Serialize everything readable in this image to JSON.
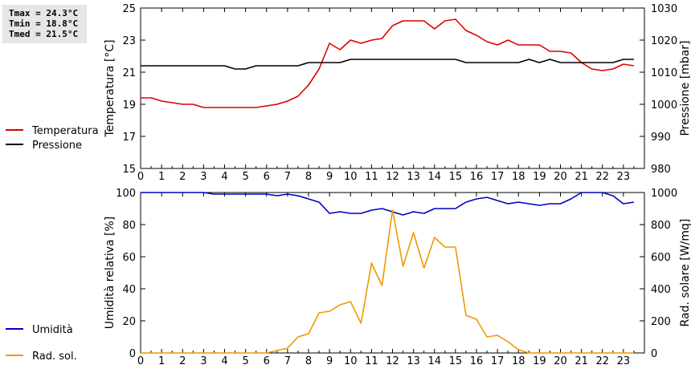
{
  "stats": {
    "tmax": "Tmax = 24.3°C",
    "tmin": "Tmin = 18.8°C",
    "tmed": "Tmed = 21.5°C"
  },
  "chart_data": [
    {
      "type": "line",
      "ylabel_left": "Temperatura [°C]",
      "ylabel_right": "Pressione [mbar]",
      "ylim_left": [
        15,
        25
      ],
      "ylim_right": [
        980,
        1030
      ],
      "yticks_left": [
        15,
        17,
        19,
        21,
        23,
        25
      ],
      "yticks_right": [
        980,
        990,
        1000,
        1010,
        1020,
        1030
      ],
      "xticks": [
        "0",
        "1",
        "2",
        "3",
        "4",
        "5",
        "6",
        "7",
        "8",
        "9",
        "10",
        "11",
        "12",
        "13",
        "14",
        "15",
        "16",
        "17",
        "18",
        "19",
        "20",
        "21",
        "22",
        "23"
      ],
      "x": [
        0,
        0.5,
        1,
        1.5,
        2,
        2.5,
        3,
        3.5,
        4,
        4.5,
        5,
        5.5,
        6,
        6.5,
        7,
        7.5,
        8,
        8.5,
        9,
        9.5,
        10,
        10.5,
        11,
        11.5,
        12,
        12.5,
        13,
        13.5,
        14,
        14.5,
        15,
        15.5,
        16,
        16.5,
        17,
        17.5,
        18,
        18.5,
        19,
        19.5,
        20,
        20.5,
        21,
        21.5,
        22,
        22.5,
        23,
        23.5
      ],
      "series": [
        {
          "name": "Temperatura",
          "color": "#dd0000",
          "axis": "left",
          "values": [
            19.4,
            19.4,
            19.2,
            19.1,
            19.0,
            19.0,
            18.8,
            18.8,
            18.8,
            18.8,
            18.8,
            18.8,
            18.9,
            19.0,
            19.2,
            19.5,
            20.2,
            21.2,
            22.8,
            22.4,
            23.0,
            22.8,
            23.0,
            23.1,
            23.9,
            24.2,
            24.2,
            24.2,
            23.7,
            24.2,
            24.3,
            23.6,
            23.3,
            22.9,
            22.7,
            23.0,
            22.7,
            22.7,
            22.7,
            22.3,
            22.3,
            22.2,
            21.6,
            21.2,
            21.1,
            21.2,
            21.5,
            21.4
          ]
        },
        {
          "name": "Pressione",
          "color": "#000000",
          "axis": "right",
          "values": [
            1012,
            1012,
            1012,
            1012,
            1012,
            1012,
            1012,
            1012,
            1012,
            1011,
            1011,
            1012,
            1012,
            1012,
            1012,
            1012,
            1013,
            1013,
            1013,
            1013,
            1014,
            1014,
            1014,
            1014,
            1014,
            1014,
            1014,
            1014,
            1014,
            1014,
            1014,
            1013,
            1013,
            1013,
            1013,
            1013,
            1013,
            1014,
            1013,
            1014,
            1013,
            1013,
            1013,
            1013,
            1013,
            1013,
            1014,
            1014
          ]
        }
      ]
    },
    {
      "type": "line",
      "ylabel_left": "Umidità relativa [%]",
      "ylabel_right": "Rad. solare [W/mq]",
      "ylim_left": [
        0,
        100
      ],
      "ylim_right": [
        0,
        1000
      ],
      "yticks_left": [
        0,
        20,
        40,
        60,
        80,
        100
      ],
      "yticks_right": [
        0,
        200,
        400,
        600,
        800,
        1000
      ],
      "xticks": [
        "0",
        "1",
        "2",
        "3",
        "4",
        "5",
        "6",
        "7",
        "8",
        "9",
        "10",
        "11",
        "12",
        "13",
        "14",
        "15",
        "16",
        "17",
        "18",
        "19",
        "20",
        "21",
        "22",
        "23"
      ],
      "x": [
        0,
        0.5,
        1,
        1.5,
        2,
        2.5,
        3,
        3.5,
        4,
        4.5,
        5,
        5.5,
        6,
        6.5,
        7,
        7.5,
        8,
        8.5,
        9,
        9.5,
        10,
        10.5,
        11,
        11.5,
        12,
        12.5,
        13,
        13.5,
        14,
        14.5,
        15,
        15.5,
        16,
        16.5,
        17,
        17.5,
        18,
        18.5,
        19,
        19.5,
        20,
        20.5,
        21,
        21.5,
        22,
        22.5,
        23,
        23.5
      ],
      "series": [
        {
          "name": "Umidità",
          "color": "#0000bb",
          "axis": "left",
          "values": [
            100,
            100,
            100,
            100,
            100,
            100,
            100,
            99,
            99,
            99,
            99,
            99,
            99,
            98,
            99,
            98,
            96,
            94,
            87,
            88,
            87,
            87,
            89,
            90,
            88,
            86,
            88,
            87,
            90,
            90,
            90,
            94,
            96,
            97,
            95,
            93,
            94,
            93,
            92,
            93,
            93,
            96,
            100,
            100,
            100,
            98,
            93,
            94
          ]
        },
        {
          "name": "Rad. sol.",
          "color": "#ee9900",
          "axis": "right",
          "values": [
            0,
            0,
            0,
            0,
            0,
            0,
            0,
            0,
            0,
            0,
            0,
            0,
            0,
            15,
            30,
            100,
            120,
            250,
            260,
            300,
            320,
            185,
            560,
            420,
            890,
            540,
            750,
            530,
            720,
            660,
            660,
            235,
            210,
            100,
            110,
            70,
            20,
            0,
            0,
            0,
            0,
            0,
            0,
            0,
            0,
            0,
            0,
            0
          ]
        }
      ]
    }
  ]
}
